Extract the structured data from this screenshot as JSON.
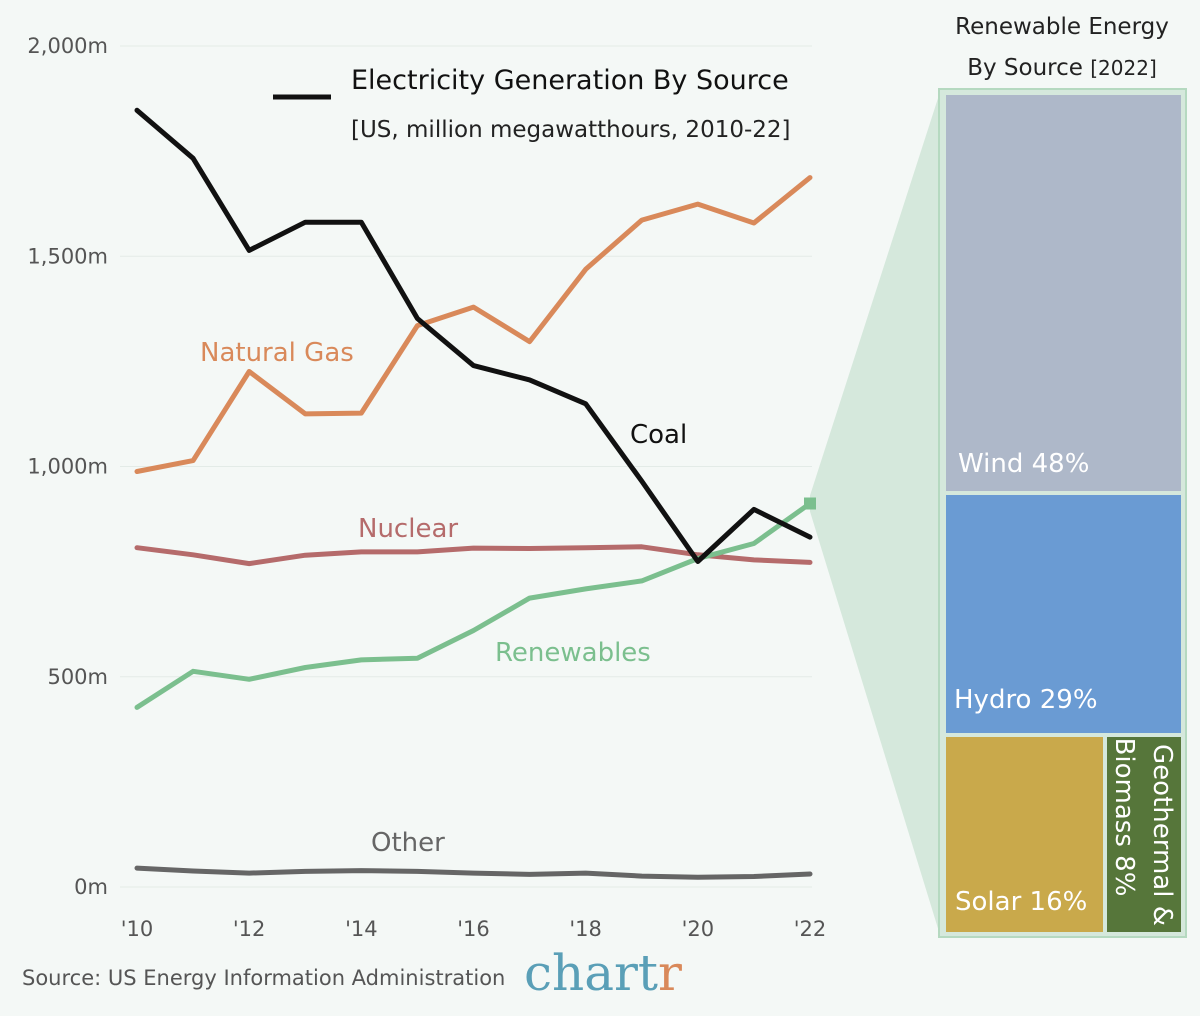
{
  "chart_data": [
    {
      "type": "line",
      "title": "Electricity Generation By Source",
      "subtitle": "[US, million megawatthours, 2010-22]",
      "x": [
        2010,
        2011,
        2012,
        2013,
        2014,
        2015,
        2016,
        2017,
        2018,
        2019,
        2020,
        2021,
        2022
      ],
      "xticks": [
        "'10",
        "'12",
        "'14",
        "'16",
        "'18",
        "'20",
        "'22"
      ],
      "yticks": [
        "0m",
        "500m",
        "1,000m",
        "1,500m",
        "2,000m"
      ],
      "ylim": [
        0,
        2000
      ],
      "series": [
        {
          "name": "Coal",
          "color": "#111111",
          "values": [
            1847,
            1733,
            1514,
            1581,
            1581,
            1352,
            1240,
            1206,
            1149,
            965,
            774,
            898,
            832
          ]
        },
        {
          "name": "Natural Gas",
          "color": "#d9895a",
          "values": [
            988,
            1014,
            1226,
            1125,
            1127,
            1335,
            1379,
            1297,
            1469,
            1586,
            1624,
            1579,
            1687
          ]
        },
        {
          "name": "Nuclear",
          "color": "#b56b6b",
          "values": [
            807,
            790,
            769,
            789,
            797,
            797,
            806,
            805,
            807,
            809,
            790,
            778,
            772
          ]
        },
        {
          "name": "Renewables",
          "color": "#7bbf8e",
          "values": [
            427,
            513,
            494,
            522,
            540,
            544,
            610,
            687,
            709,
            728,
            781,
            817,
            912
          ]
        },
        {
          "name": "Other",
          "color": "#666666",
          "values": [
            45,
            38,
            33,
            37,
            39,
            37,
            33,
            30,
            33,
            26,
            23,
            25,
            31
          ]
        }
      ]
    },
    {
      "type": "treemap",
      "title_line1": "Renewable Energy",
      "title_line2": "By Source",
      "title_suffix": "[2022]",
      "items": [
        {
          "name": "Wind",
          "label": "Wind 48%",
          "value": 48,
          "color": "#aeb8c9"
        },
        {
          "name": "Hydro",
          "label": "Hydro 29%",
          "value": 29,
          "color": "#6a9bd3"
        },
        {
          "name": "Solar",
          "label": "Solar 16%",
          "value": 16,
          "color": "#c9a94b"
        },
        {
          "name": "Geothermal & Biomass",
          "label_line1": "Geothermal &",
          "label_line2": "Biomass 8%",
          "value": 8,
          "color": "#56763a"
        }
      ]
    }
  ],
  "source": "Source: US Energy Information Administration",
  "brand": {
    "c1": "chart",
    "c2": "r",
    "color1": "#5a9fb7",
    "color2": "#d9895a"
  },
  "colors": {
    "grid": "#e3ebe7",
    "callout": "#d5e8dc",
    "callout_stroke": "#b5d9c0",
    "background": "#f4f8f6"
  }
}
